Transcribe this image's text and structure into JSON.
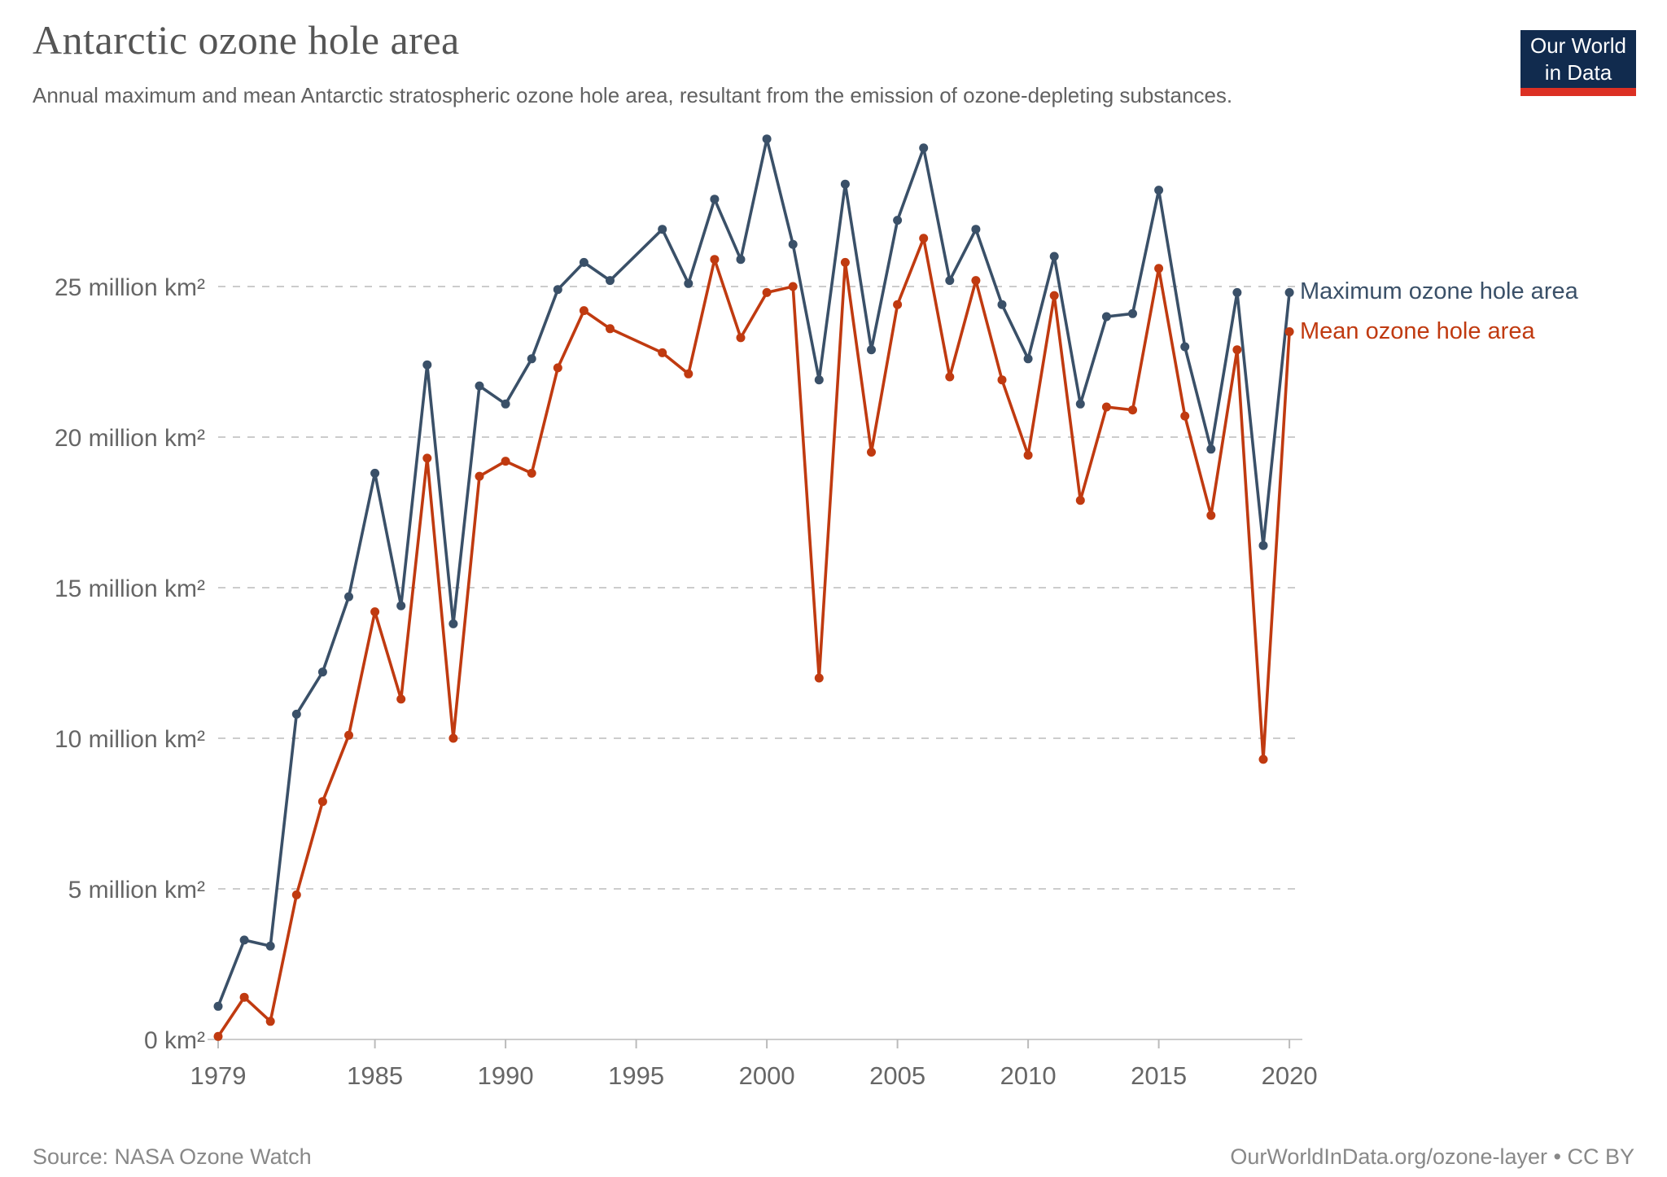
{
  "header": {
    "title": "Antarctic ozone hole area",
    "subtitle": "Annual maximum and mean Antarctic stratospheric ozone hole area, resultant from the emission of ozone-depleting substances."
  },
  "logo": {
    "line1": "Our World",
    "line2": "in Data",
    "bg_color": "#112B4E",
    "accent_color": "#DC3023"
  },
  "chart_data": {
    "type": "line",
    "title": "Antarctic ozone hole area",
    "x": [
      1979,
      1980,
      1981,
      1982,
      1983,
      1984,
      1985,
      1986,
      1987,
      1988,
      1989,
      1990,
      1991,
      1992,
      1993,
      1994,
      1995,
      1996,
      1997,
      1998,
      1999,
      2000,
      2001,
      2002,
      2003,
      2004,
      2005,
      2006,
      2007,
      2008,
      2009,
      2010,
      2011,
      2012,
      2013,
      2014,
      2015,
      2016,
      2017,
      2018,
      2019,
      2020
    ],
    "series": [
      {
        "name": "Maximum ozone hole area",
        "color": "#3A5068",
        "values": [
          1.1,
          3.3,
          3.1,
          10.8,
          12.2,
          14.7,
          18.8,
          14.4,
          22.4,
          13.8,
          21.7,
          21.1,
          22.6,
          24.9,
          25.8,
          25.2,
          null,
          26.9,
          25.1,
          27.9,
          25.9,
          29.9,
          26.4,
          21.9,
          28.4,
          22.9,
          27.2,
          29.6,
          25.2,
          26.9,
          24.4,
          22.6,
          26.0,
          21.1,
          24.0,
          24.1,
          28.2,
          23.0,
          19.6,
          24.8,
          16.4,
          24.8
        ]
      },
      {
        "name": "Mean ozone hole area",
        "color": "#C03A10",
        "values": [
          0.1,
          1.4,
          0.6,
          4.8,
          7.9,
          10.1,
          14.2,
          11.3,
          19.3,
          10.0,
          18.7,
          19.2,
          18.8,
          22.3,
          24.2,
          23.6,
          null,
          22.8,
          22.1,
          25.9,
          23.3,
          24.8,
          25.0,
          12.0,
          25.8,
          19.5,
          24.4,
          26.6,
          22.0,
          25.2,
          21.9,
          19.4,
          24.7,
          17.9,
          21.0,
          20.9,
          25.6,
          20.7,
          17.4,
          22.9,
          9.3,
          23.5
        ]
      }
    ],
    "xlabel": "",
    "ylabel": "",
    "ylim": [
      0,
      30
    ],
    "grid": true,
    "legend_position": "right-of-line-ends",
    "y_ticks": [
      {
        "value": 0,
        "label": "0 km²"
      },
      {
        "value": 5,
        "label": "5 million km²"
      },
      {
        "value": 10,
        "label": "10 million km²"
      },
      {
        "value": 15,
        "label": "15 million km²"
      },
      {
        "value": 20,
        "label": "20 million km²"
      },
      {
        "value": 25,
        "label": "25 million km²"
      }
    ],
    "x_ticks": [
      1979,
      1985,
      1990,
      1995,
      2000,
      2005,
      2010,
      2015,
      2020
    ]
  },
  "footer": {
    "source": "Source: NASA Ozone Watch",
    "link": "OurWorldInData.org/ozone-layer • CC BY"
  }
}
